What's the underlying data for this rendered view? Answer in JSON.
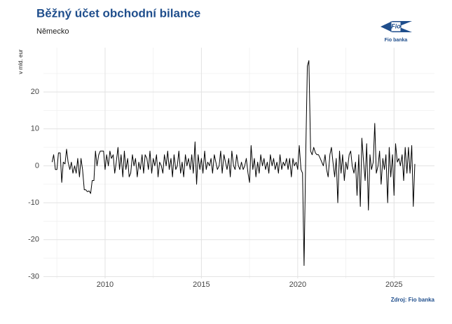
{
  "chart_data": {
    "type": "line",
    "title": "Běžný účet obchodní bilance",
    "subtitle": "Německo",
    "y_label": "v mld. eur",
    "source": "Zdroj: Fio banka",
    "logo_text": "Fio",
    "logo_caption": "Fio banka",
    "color": "#000000",
    "grid": true,
    "xlim": [
      2006.8,
      2027.1
    ],
    "xticks": [
      2010,
      2015,
      2020,
      2025
    ],
    "ylim": [
      -30.5,
      32
    ],
    "yticks": [
      -30,
      -20,
      -10,
      0,
      10,
      20
    ],
    "x": [
      2007.25,
      2007.33,
      2007.42,
      2007.5,
      2007.58,
      2007.67,
      2007.75,
      2007.83,
      2007.92,
      2008.0,
      2008.08,
      2008.17,
      2008.25,
      2008.33,
      2008.42,
      2008.5,
      2008.58,
      2008.67,
      2008.75,
      2008.83,
      2008.92,
      2009.0,
      2009.08,
      2009.17,
      2009.25,
      2009.33,
      2009.42,
      2009.5,
      2009.58,
      2009.67,
      2009.75,
      2009.83,
      2009.92,
      2010.0,
      2010.08,
      2010.17,
      2010.25,
      2010.33,
      2010.42,
      2010.5,
      2010.58,
      2010.67,
      2010.75,
      2010.83,
      2010.92,
      2011.0,
      2011.08,
      2011.17,
      2011.25,
      2011.33,
      2011.42,
      2011.5,
      2011.58,
      2011.67,
      2011.75,
      2011.83,
      2011.92,
      2012.0,
      2012.08,
      2012.17,
      2012.25,
      2012.33,
      2012.42,
      2012.5,
      2012.58,
      2012.67,
      2012.75,
      2012.83,
      2012.92,
      2013.0,
      2013.08,
      2013.17,
      2013.25,
      2013.33,
      2013.42,
      2013.5,
      2013.58,
      2013.67,
      2013.75,
      2013.83,
      2013.92,
      2014.0,
      2014.08,
      2014.17,
      2014.25,
      2014.33,
      2014.42,
      2014.5,
      2014.58,
      2014.67,
      2014.75,
      2014.83,
      2014.92,
      2015.0,
      2015.08,
      2015.17,
      2015.25,
      2015.33,
      2015.42,
      2015.5,
      2015.58,
      2015.67,
      2015.75,
      2015.83,
      2015.92,
      2016.0,
      2016.08,
      2016.17,
      2016.25,
      2016.33,
      2016.42,
      2016.5,
      2016.58,
      2016.67,
      2016.75,
      2016.83,
      2016.92,
      2017.0,
      2017.08,
      2017.17,
      2017.25,
      2017.33,
      2017.42,
      2017.5,
      2017.58,
      2017.67,
      2017.75,
      2017.83,
      2017.92,
      2018.0,
      2018.08,
      2018.17,
      2018.25,
      2018.33,
      2018.42,
      2018.5,
      2018.58,
      2018.67,
      2018.75,
      2018.83,
      2018.92,
      2019.0,
      2019.08,
      2019.17,
      2019.25,
      2019.33,
      2019.42,
      2019.5,
      2019.58,
      2019.67,
      2019.75,
      2019.83,
      2019.92,
      2020.0,
      2020.08,
      2020.17,
      2020.25,
      2020.33,
      2020.42,
      2020.5,
      2020.58,
      2020.67,
      2020.75,
      2020.83,
      2020.92,
      2021.0,
      2021.08,
      2021.17,
      2021.25,
      2021.33,
      2021.42,
      2021.5,
      2021.58,
      2021.67,
      2021.75,
      2021.83,
      2021.92,
      2022.0,
      2022.08,
      2022.17,
      2022.25,
      2022.33,
      2022.42,
      2022.5,
      2022.58,
      2022.67,
      2022.75,
      2022.83,
      2022.92,
      2023.0,
      2023.08,
      2023.17,
      2023.25,
      2023.33,
      2023.42,
      2023.5,
      2023.58,
      2023.67,
      2023.75,
      2023.83,
      2023.92,
      2024.0,
      2024.08,
      2024.17,
      2024.25,
      2024.33,
      2024.42,
      2024.5,
      2024.58,
      2024.67,
      2024.75,
      2024.83,
      2024.92,
      2025.0,
      2025.08,
      2025.17,
      2025.25,
      2025.33,
      2025.42,
      2025.5,
      2025.58,
      2025.67,
      2025.75,
      2025.83,
      2025.92,
      2026.0,
      2026.08
    ],
    "values": [
      1,
      3,
      -1,
      -1,
      3.5,
      3.5,
      -4.5,
      1,
      0.5,
      4.5,
      1,
      -1,
      1,
      -2,
      0,
      -2,
      2,
      -3,
      2,
      -1,
      -6.5,
      -6.5,
      -7,
      -6.8,
      -7.5,
      -4,
      -4,
      4,
      0,
      3,
      4,
      4,
      4,
      -1,
      3,
      0,
      4,
      2,
      3,
      -2,
      1,
      5,
      -1,
      3,
      -3,
      4,
      -1,
      2,
      -3,
      -2,
      3,
      0,
      2,
      -3,
      1,
      -1,
      3,
      -2,
      3,
      2,
      -1,
      4,
      -2,
      2,
      0,
      3,
      -3,
      1,
      0,
      -2,
      3,
      0,
      4,
      -1,
      2,
      -3,
      3,
      -1,
      0,
      4,
      -2,
      1,
      -3,
      3,
      0,
      2,
      -1,
      3,
      -2,
      6.5,
      -5,
      3,
      -1,
      2,
      -2,
      4,
      -1,
      1,
      0,
      2,
      -2,
      3,
      1,
      -1,
      0,
      4,
      -2,
      3,
      1,
      -1,
      2,
      -3,
      4,
      0,
      -1,
      3,
      0,
      -1,
      1,
      -1,
      0,
      2,
      -2,
      -4.5,
      5.5,
      -1,
      2,
      -3,
      1,
      -2,
      3,
      0,
      2,
      -1,
      1,
      -2,
      3,
      0,
      2,
      -1,
      1,
      -2,
      3,
      -1,
      1,
      0,
      2,
      -1,
      2,
      -3,
      2,
      0,
      1,
      -1,
      5.5,
      -1,
      -2,
      -27,
      4,
      27,
      28.5,
      4,
      3,
      5,
      3.5,
      3,
      3,
      2,
      1,
      0,
      3,
      -1,
      -3,
      3,
      5,
      1,
      -3,
      2,
      -10,
      4,
      -2,
      3,
      -4,
      1,
      -1,
      3,
      4,
      0,
      -2,
      1,
      -8,
      3,
      -11,
      7.5,
      1,
      -4,
      6,
      -12,
      3,
      -1,
      1,
      11.5,
      -2,
      0,
      4,
      -5,
      2,
      -1,
      3,
      -10,
      5,
      -3,
      3,
      -8,
      6,
      1,
      2,
      0,
      3,
      -4,
      5,
      -2,
      5,
      -2,
      5.5,
      -11,
      0.5
    ]
  }
}
